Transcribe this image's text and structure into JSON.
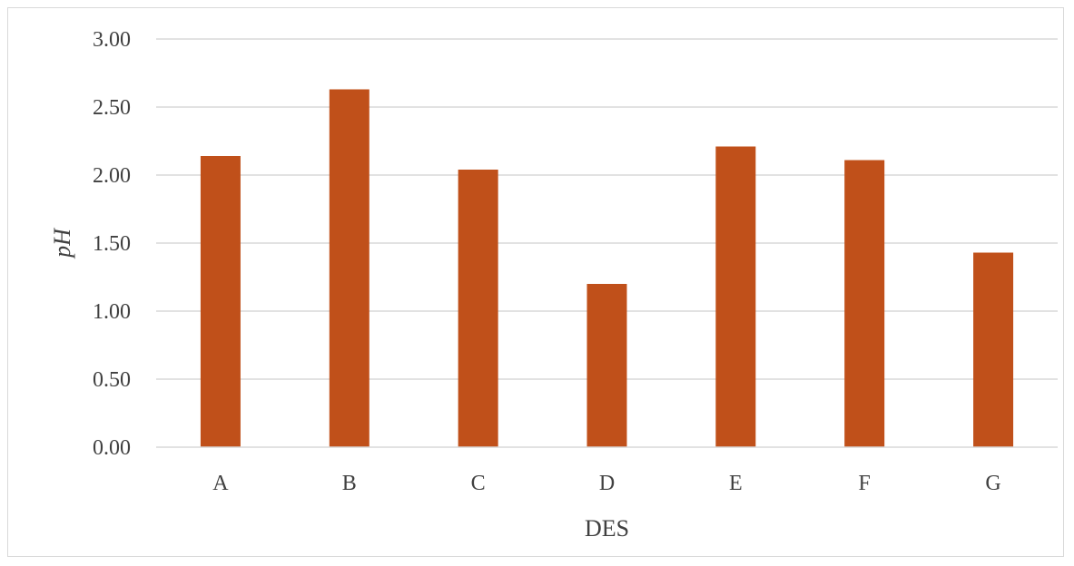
{
  "chart_data": {
    "type": "bar",
    "title": "",
    "xlabel": "DES",
    "ylabel": "pH",
    "categories": [
      "A",
      "B",
      "C",
      "D",
      "E",
      "F",
      "G"
    ],
    "values": [
      2.14,
      2.63,
      2.04,
      1.2,
      2.21,
      2.11,
      1.43
    ],
    "ylim": [
      0,
      3
    ],
    "yticks": [
      "0.00",
      "0.50",
      "1.00",
      "1.50",
      "2.00",
      "2.50",
      "3.00"
    ],
    "grid": true,
    "legend": "none",
    "bar_color": "#C0501A",
    "grid_color": "#d9d9d9"
  }
}
